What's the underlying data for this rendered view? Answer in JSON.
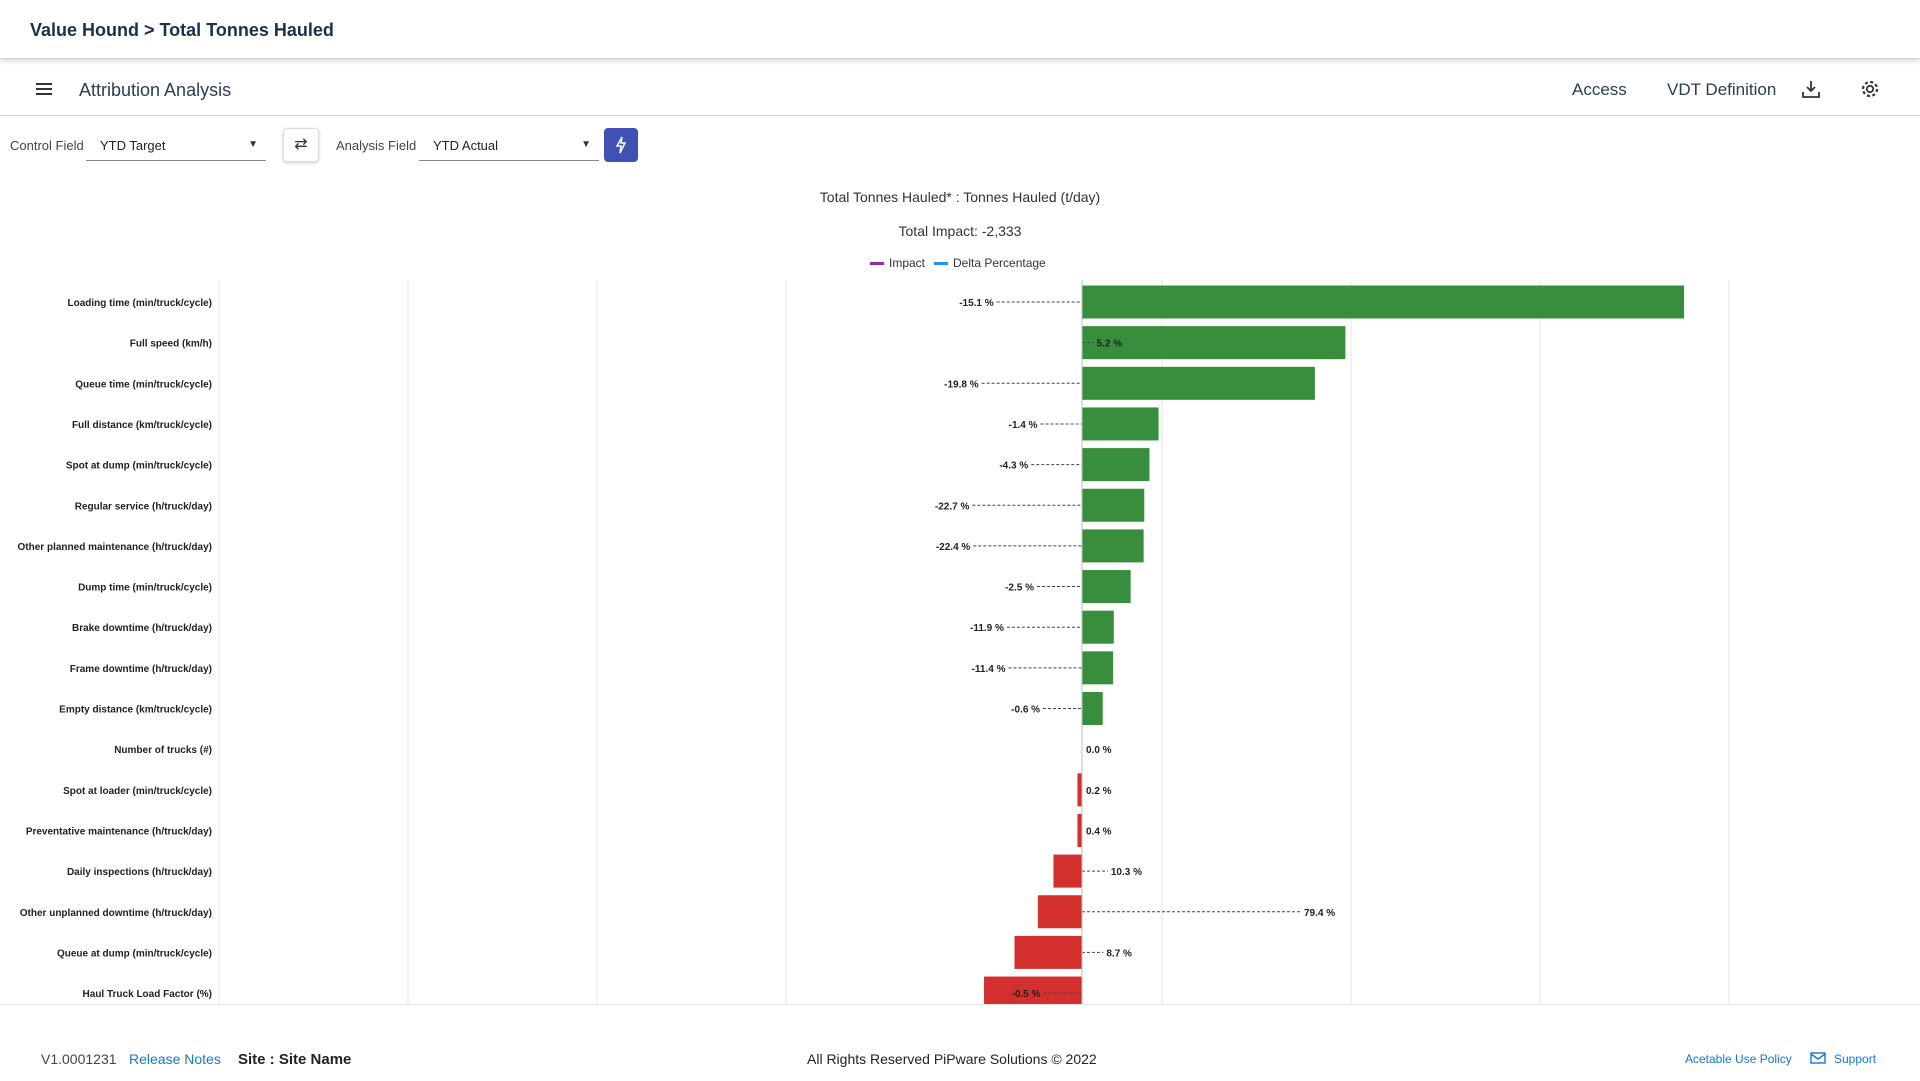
{
  "header": {
    "breadcrumb": "Value Hound > Total Tonnes Hauled"
  },
  "toolbar": {
    "title": "Attribution Analysis",
    "access_label": "Access",
    "vdt_label": "VDT Definition",
    "icons": {
      "menu": "menu-icon",
      "download": "download-icon",
      "settings": "gear-icon"
    }
  },
  "controls": {
    "control_field_label": "Control Field",
    "control_field_value": "YTD Target",
    "analysis_field_label": "Analysis Field",
    "analysis_field_value": "YTD Actual",
    "swap_icon": "swap-icon",
    "run_icon": "lightning-icon"
  },
  "chart_title": "Total Tonnes Hauled* : Tonnes Hauled (t/day)",
  "total_impact": "Total Impact: -2,333",
  "legend": {
    "impact": "Impact",
    "delta": "Delta Percentage"
  },
  "colors": {
    "positive": "#388e3c",
    "negative": "#d32f2f",
    "impact_legend": "#9c27b0",
    "delta_legend": "#2196f3",
    "accent": "#3f51b5"
  },
  "chart_data": {
    "type": "bar",
    "orientation": "horizontal",
    "series": [
      {
        "name": "Impact",
        "values": [
          928,
          406,
          359,
          118,
          104,
          96,
          95,
          75,
          49,
          48,
          32,
          0,
          -7,
          -7,
          -44,
          -68,
          -104,
          -151
        ]
      },
      {
        "name": "Delta Percentage",
        "values": [
          -15.1,
          5.2,
          -19.8,
          -1.4,
          -4.3,
          -22.7,
          -22.4,
          -2.5,
          -11.9,
          -11.4,
          -0.6,
          0.0,
          0.2,
          0.4,
          10.3,
          79.4,
          8.7,
          -0.5
        ]
      }
    ],
    "categories": [
      "Loading time (min/truck/cycle)",
      "Full speed (km/h)",
      "Queue time (min/truck/cycle)",
      "Full distance (km/truck/cycle)",
      "Spot at dump (min/truck/cycle)",
      "Regular service (h/truck/day)",
      "Other planned maintenance (h/truck/day)",
      "Dump time (min/truck/cycle)",
      "Brake downtime (h/truck/day)",
      "Frame downtime (h/truck/day)",
      "Empty distance (km/truck/cycle)",
      "Number of trucks (#)",
      "Spot at loader (min/truck/cycle)",
      "Preventative maintenance (h/truck/day)",
      "Daily inspections (h/truck/day)",
      "Other unplanned downtime (h/truck/day)",
      "Queue at dump (min/truck/cycle)",
      "Haul Truck Load Factor (%)"
    ],
    "labels": [
      "-15.1 %",
      "5.2 %",
      "-19.8 %",
      "-1.4 %",
      "-4.3 %",
      "-22.7 %",
      "-22.4 %",
      "-2.5 %",
      "-11.9 %",
      "-11.4 %",
      "-0.6 %",
      "0.0 %",
      "0.2 %",
      "0.4 %",
      "10.3 %",
      "79.4 %",
      "8.7 %",
      "-0.5 %"
    ],
    "xlim": [
      -1150,
      1000
    ],
    "grid": true
  },
  "footer": {
    "version": "V1.0001231",
    "release_notes": "Release Notes",
    "site": "Site : Site Name",
    "copyright": "All Rights Reserved PiPware Solutions © 2022",
    "policy": "Acetable Use Policy",
    "support": "Support",
    "support_icon": "mail-icon"
  }
}
